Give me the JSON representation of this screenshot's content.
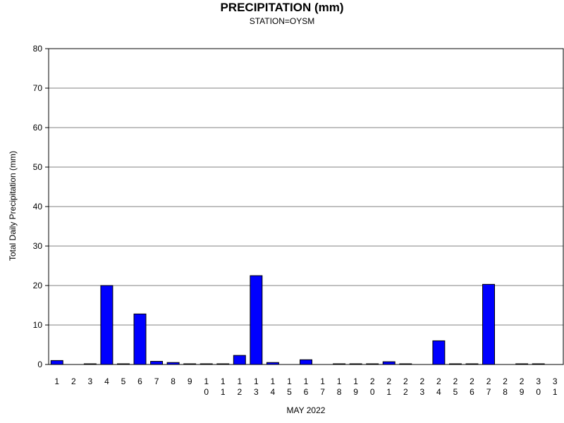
{
  "chart_data": {
    "type": "bar",
    "title": "PRECIPITATION (mm)",
    "subtitle": "STATION=OYSM",
    "xlabel": "MAY 2022",
    "ylabel": "Total Daily Precipitation (mm)",
    "ylim": [
      0,
      80
    ],
    "yticks": [
      "0",
      "10",
      "20",
      "30",
      "40",
      "50",
      "60",
      "70",
      "80"
    ],
    "categories": [
      "1",
      "2",
      "3",
      "4",
      "5",
      "6",
      "7",
      "8",
      "9",
      "10",
      "11",
      "12",
      "13",
      "14",
      "15",
      "16",
      "17",
      "18",
      "19",
      "20",
      "21",
      "22",
      "23",
      "24",
      "25",
      "26",
      "27",
      "28",
      "29",
      "30",
      "31"
    ],
    "values": [
      1.0,
      null,
      0.1,
      20.0,
      0.1,
      12.8,
      0.8,
      0.5,
      0.1,
      0.1,
      0.1,
      2.3,
      22.5,
      0.5,
      null,
      1.2,
      null,
      0.1,
      0.1,
      0.1,
      0.7,
      0.1,
      null,
      6.0,
      0.1,
      0.1,
      20.3,
      null,
      0.1,
      0.1,
      null
    ],
    "grid": true,
    "bar_color": "#0000ff",
    "bar_edge_color": "#000000",
    "grid_color": "#808080"
  }
}
